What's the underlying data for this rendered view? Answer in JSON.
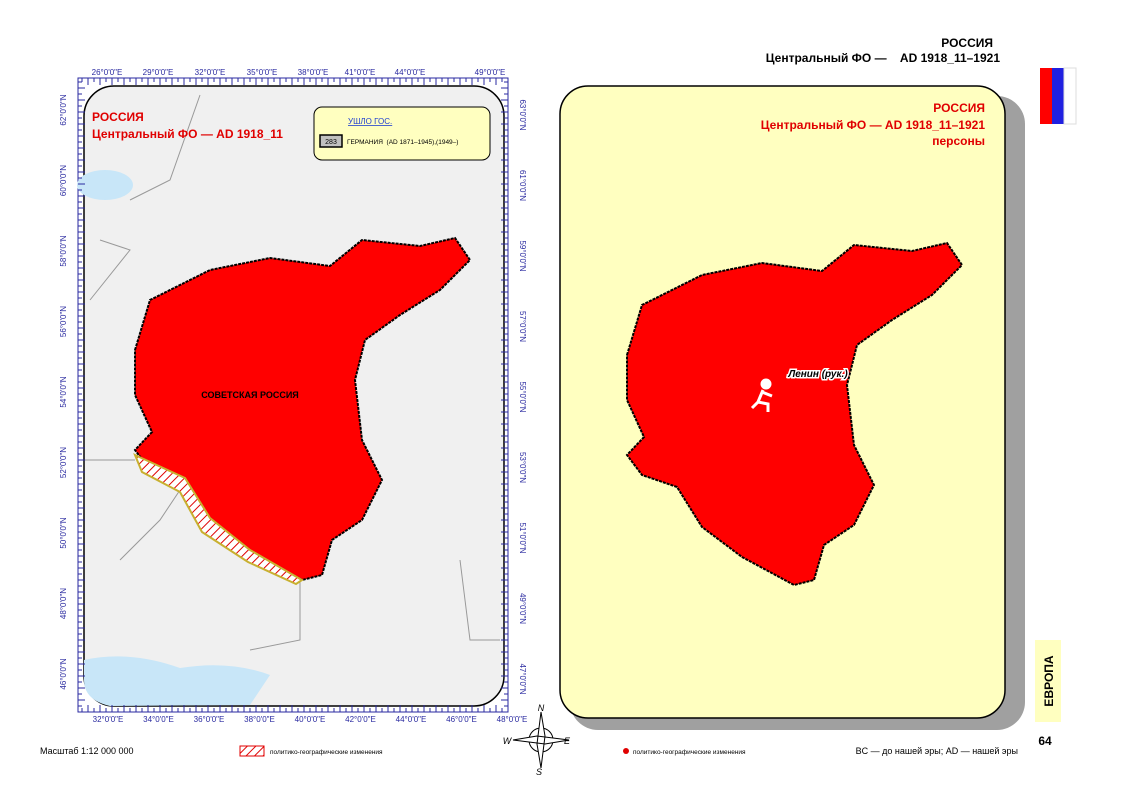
{
  "header": {
    "title": "РОССИЯ",
    "subtitle": "Центральный ФО —    AD 1918_11–1921"
  },
  "left_map": {
    "title": "РОССИЯ",
    "subtitle": "Центральный ФО — AD 1918_11",
    "region_label": "СОВЕТСКАЯ РОССИЯ",
    "legend": {
      "title": "УШЛО ГОС.",
      "code": "283",
      "item": "ГЕРМАНИЯ  (AD 1871–1945),(1949–)"
    },
    "top_labels": [
      "26°0'0\"E",
      "29°0'0\"E",
      "32°0'0\"E",
      "35°0'0\"E",
      "38°0'0\"E",
      "41°0'0\"E",
      "44°0'0\"E",
      "49°0'0\"E"
    ],
    "bottom_labels": [
      "32°0'0\"E",
      "34°0'0\"E",
      "36°0'0\"E",
      "38°0'0\"E",
      "40°0'0\"E",
      "42°0'0\"E",
      "44°0'0\"E",
      "46°0'0\"E",
      "48°0'0\"E"
    ],
    "left_labels": [
      "62°0'0\"N",
      "60°0'0\"N",
      "58°0'0\"N",
      "56°0'0\"N",
      "54°0'0\"N",
      "52°0'0\"N",
      "50°0'0\"N",
      "48°0'0\"N",
      "46°0'0\"N"
    ],
    "right_labels": [
      "63°0'0\"N",
      "61°0'0\"N",
      "59°0'0\"N",
      "57°0'0\"N",
      "55°0'0\"N",
      "53°0'0\"N",
      "51°0'0\"N",
      "49°0'0\"N",
      "47°0'0\"N"
    ]
  },
  "right_map": {
    "title": "РОССИЯ",
    "subtitle": "Центральный ФО — AD 1918_11–1921",
    "subtitle2": "персоны",
    "person": "Ленин (рук.)"
  },
  "compass": {
    "n": "N",
    "w": "W",
    "e": "E",
    "s": "S"
  },
  "footer": {
    "scale": "Масштаб 1:12 000 000",
    "legend_hatch": "политико-географические изменения",
    "legend_dot": "политико-географические изменения",
    "era_note": "BC — до нашей эры; AD — нашей эры",
    "section": "ЕВРОПА",
    "page": "64"
  }
}
